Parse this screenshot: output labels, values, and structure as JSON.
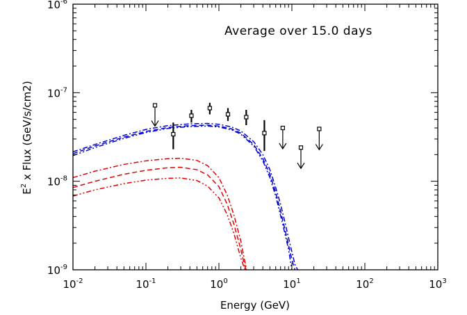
{
  "chart_data": {
    "type": "line",
    "annotation": "Average over 15.0 days",
    "xlabel": "Energy (GeV)",
    "ylabel_prefix": "E",
    "ylabel_sup": "2",
    "ylabel_suffix": " x Flux (GeV/s/cm2)",
    "x_scale": "log",
    "y_scale": "log",
    "xlim": [
      0.01,
      1000
    ],
    "ylim": [
      1e-09,
      1e-06
    ],
    "x_ticks": [
      {
        "value": 0.01,
        "base": "10",
        "exp": "-2"
      },
      {
        "value": 0.1,
        "base": "10",
        "exp": "-1"
      },
      {
        "value": 1,
        "base": "10",
        "exp": "0"
      },
      {
        "value": 10,
        "base": "10",
        "exp": "1"
      },
      {
        "value": 100,
        "base": "10",
        "exp": "2"
      },
      {
        "value": 1000,
        "base": "10",
        "exp": "3"
      }
    ],
    "y_ticks": [
      {
        "value": 1e-09,
        "base": "10",
        "exp": "-9"
      },
      {
        "value": 1e-08,
        "base": "10",
        "exp": "-8"
      },
      {
        "value": 1e-07,
        "base": "10",
        "exp": "-7"
      },
      {
        "value": 1e-06,
        "base": "10",
        "exp": "-6"
      }
    ],
    "grid": false,
    "colors": {
      "blue": "#0000cc",
      "red": "#e00000",
      "black": "#000000"
    },
    "series": [
      {
        "color": "#0000cc",
        "dash": "dash-dot",
        "x": [
          0.01,
          0.02,
          0.05,
          0.1,
          0.2,
          0.4,
          0.7,
          1.0,
          1.5,
          2.0,
          3.0,
          4.0,
          5.0,
          6.0,
          7.0,
          8.0,
          9.0,
          10.0,
          11.0,
          12.0
        ],
        "y": [
          2.15e-08,
          2.6e-08,
          3.3e-08,
          3.85e-08,
          4.25e-08,
          4.45e-08,
          4.5e-08,
          4.4e-08,
          4.1e-08,
          3.7e-08,
          2.8e-08,
          2e-08,
          1.35e-08,
          8.5e-09,
          5.5e-09,
          3.5e-09,
          2.3e-09,
          1.6e-09,
          1.15e-09,
          1e-09
        ]
      },
      {
        "color": "#0000cc",
        "dash": "dash",
        "x": [
          0.01,
          0.02,
          0.05,
          0.1,
          0.2,
          0.4,
          0.7,
          1.0,
          1.5,
          2.0,
          3.0,
          4.0,
          5.0,
          6.0,
          7.0,
          8.0,
          9.0,
          10.0,
          11.0
        ],
        "y": [
          2.05e-08,
          2.5e-08,
          3.15e-08,
          3.65e-08,
          4.05e-08,
          4.25e-08,
          4.3e-08,
          4.2e-08,
          3.9e-08,
          3.5e-08,
          2.6e-08,
          1.8e-08,
          1.2e-08,
          7.5e-09,
          4.6e-09,
          2.9e-09,
          1.9e-09,
          1.3e-09,
          1e-09
        ]
      },
      {
        "color": "#0000cc",
        "dash": "dash-dot-dot",
        "x": [
          0.01,
          0.02,
          0.05,
          0.1,
          0.2,
          0.4,
          0.7,
          1.0,
          1.5,
          2.0,
          3.0,
          4.0,
          5.0,
          6.0,
          7.0,
          8.0,
          9.0,
          10.0
        ],
        "y": [
          1.95e-08,
          2.4e-08,
          3.05e-08,
          3.55e-08,
          3.95e-08,
          4.15e-08,
          4.2e-08,
          4.1e-08,
          3.8e-08,
          3.4e-08,
          2.5e-08,
          1.7e-08,
          1.1e-08,
          6.8e-09,
          4.1e-09,
          2.6e-09,
          1.7e-09,
          1e-09
        ]
      },
      {
        "color": "#e00000",
        "dash": "dash-dot",
        "x": [
          0.01,
          0.02,
          0.05,
          0.1,
          0.2,
          0.3,
          0.5,
          0.7,
          1.0,
          1.3,
          1.6,
          2.0,
          2.2,
          2.4
        ],
        "y": [
          1.1e-08,
          1.3e-08,
          1.55e-08,
          1.7e-08,
          1.8e-08,
          1.82e-08,
          1.72e-08,
          1.5e-08,
          1.1e-08,
          7e-09,
          4.2e-09,
          2.1e-09,
          1.4e-09,
          1e-09
        ]
      },
      {
        "color": "#e00000",
        "dash": "dash",
        "x": [
          0.01,
          0.02,
          0.05,
          0.1,
          0.2,
          0.3,
          0.5,
          0.7,
          1.0,
          1.3,
          1.6,
          2.0,
          2.2,
          2.35
        ],
        "y": [
          8.5e-09,
          1e-08,
          1.2e-08,
          1.33e-08,
          1.42e-08,
          1.44e-08,
          1.35e-08,
          1.18e-08,
          8.7e-09,
          5.5e-09,
          3.3e-09,
          1.7e-09,
          1.2e-09,
          1e-09
        ]
      },
      {
        "color": "#e00000",
        "dash": "dash-dot-dot",
        "x": [
          0.01,
          0.02,
          0.05,
          0.1,
          0.2,
          0.3,
          0.5,
          0.7,
          1.0,
          1.3,
          1.6,
          2.0,
          2.2,
          2.3
        ],
        "y": [
          6.8e-09,
          8e-09,
          9.4e-09,
          1.03e-08,
          1.08e-08,
          1.09e-08,
          1.02e-08,
          8.8e-09,
          6.5e-09,
          4.2e-09,
          2.6e-09,
          1.35e-09,
          1.08e-09,
          1e-09
        ]
      }
    ],
    "data_points": [
      {
        "x": 0.133,
        "y": 7.2e-08,
        "xlo": 0.128,
        "xhi": 0.138,
        "upper_limit": true
      },
      {
        "x": 0.237,
        "y": 3.4e-08,
        "ylo": 2.3e-08,
        "yhi": 4.6e-08,
        "xlo": 0.228,
        "xhi": 0.246
      },
      {
        "x": 0.42,
        "y": 5.5e-08,
        "ylo": 4.6e-08,
        "yhi": 6.4e-08,
        "xlo": 0.405,
        "xhi": 0.435
      },
      {
        "x": 0.75,
        "y": 6.7e-08,
        "ylo": 5.7e-08,
        "yhi": 7.7e-08,
        "xlo": 0.72,
        "xhi": 0.78
      },
      {
        "x": 1.33,
        "y": 5.7e-08,
        "ylo": 4.8e-08,
        "yhi": 6.7e-08,
        "xlo": 1.28,
        "xhi": 1.38
      },
      {
        "x": 2.37,
        "y": 5.3e-08,
        "ylo": 4.3e-08,
        "yhi": 6.4e-08,
        "xlo": 2.28,
        "xhi": 2.46
      },
      {
        "x": 4.2,
        "y": 3.5e-08,
        "ylo": 2.2e-08,
        "yhi": 4.9e-08,
        "xlo": 4.05,
        "xhi": 4.35
      },
      {
        "x": 7.5,
        "y": 4e-08,
        "xlo": 7.2,
        "xhi": 7.8,
        "upper_limit": true
      },
      {
        "x": 13.3,
        "y": 2.4e-08,
        "xlo": 12.8,
        "xhi": 13.8,
        "upper_limit": true
      },
      {
        "x": 23.7,
        "y": 3.9e-08,
        "xlo": 22.8,
        "xhi": 24.6,
        "upper_limit": true
      }
    ]
  }
}
